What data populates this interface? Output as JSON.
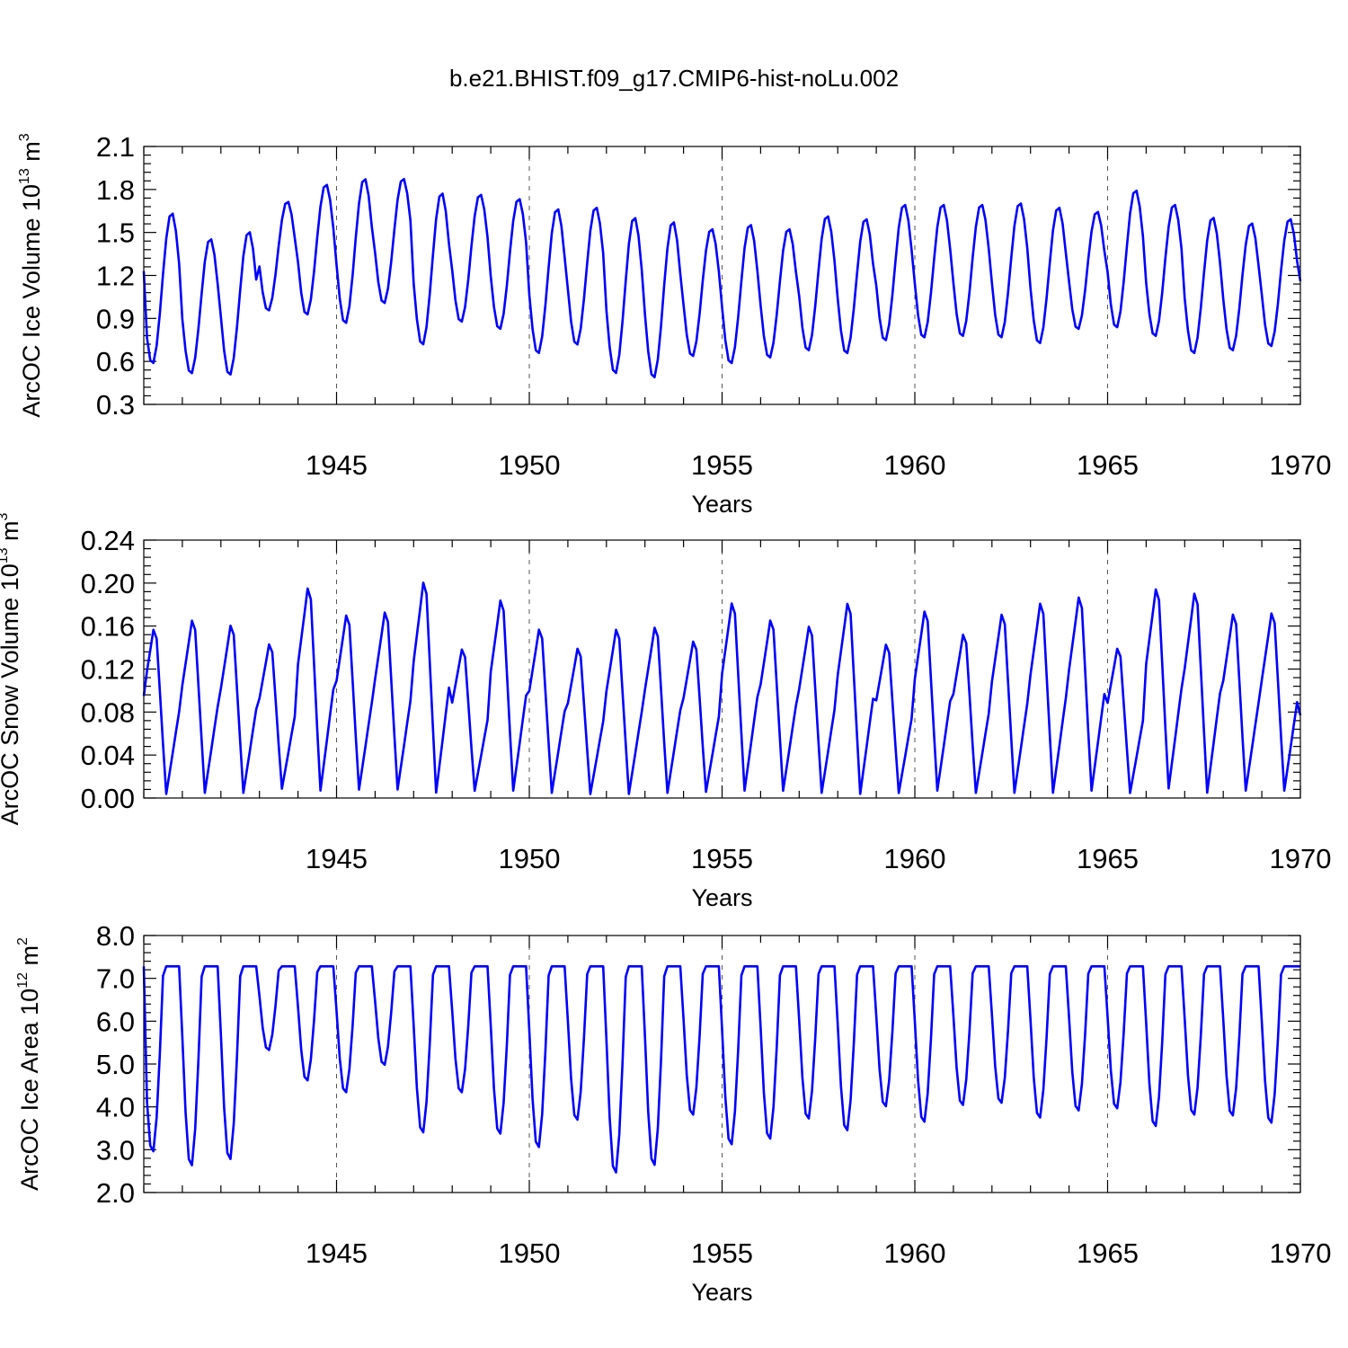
{
  "title": "b.e21.BHIST.f09_g17.CMIP6-hist-noLu.002",
  "colors": {
    "series": "#0000ff",
    "frame": "#000000"
  },
  "chart_data": [
    {
      "type": "line",
      "title": "b.e21.BHIST.f09_g17.CMIP6-hist-noLu.002",
      "xlabel": "Years",
      "ylabel": {
        "text": "ArcOC Ice Volume 10",
        "sup": "13",
        "unit": " m",
        "unit_sup": "3"
      },
      "xlim": [
        1940.0,
        1970.0
      ],
      "ylim": [
        0.3,
        2.1
      ],
      "xticks": [
        "1945",
        "1950",
        "1955",
        "1960",
        "1965",
        "1970"
      ],
      "yticks": [
        "0.3",
        "0.6",
        "0.9",
        "1.2",
        "1.5",
        "1.8",
        "2.1"
      ],
      "grid": "vertical dashed at labeled years",
      "annual_max": [
        1.64,
        1.46,
        1.51,
        1.72,
        1.84,
        1.88,
        1.88,
        1.78,
        1.77,
        1.74,
        1.67,
        1.68,
        1.61,
        1.58,
        1.53,
        1.56,
        1.53,
        1.62,
        1.6,
        1.7,
        1.7,
        1.7,
        1.71,
        1.68,
        1.65,
        1.8,
        1.7,
        1.61,
        1.57,
        1.6
      ],
      "annual_min": [
        0.58,
        0.51,
        0.5,
        0.95,
        0.92,
        0.86,
        1.0,
        0.71,
        0.87,
        0.82,
        0.65,
        0.71,
        0.51,
        0.48,
        0.63,
        0.58,
        0.62,
        0.67,
        0.65,
        0.74,
        0.76,
        0.77,
        0.76,
        0.72,
        0.82,
        0.83,
        0.77,
        0.65,
        0.67,
        0.7
      ],
      "start_value": 1.23,
      "end_value": 1.16
    },
    {
      "type": "line",
      "xlabel": "Years",
      "ylabel": {
        "text": "ArcOC Snow Volume 10",
        "sup": "13",
        "unit": " m",
        "unit_sup": "3"
      },
      "xlim": [
        1940.0,
        1970.0
      ],
      "ylim": [
        0.0,
        0.24
      ],
      "xticks": [
        "1945",
        "1950",
        "1955",
        "1960",
        "1965",
        "1970"
      ],
      "yticks": [
        "0.00",
        "0.04",
        "0.08",
        "0.12",
        "0.16",
        "0.20",
        "0.24"
      ],
      "grid": "vertical dashed at labeled years",
      "annual_max": [
        0.168,
        0.177,
        0.172,
        0.153,
        0.209,
        0.182,
        0.185,
        0.215,
        0.148,
        0.197,
        0.168,
        0.149,
        0.168,
        0.17,
        0.156,
        0.194,
        0.177,
        0.171,
        0.194,
        0.153,
        0.186,
        0.163,
        0.183,
        0.194,
        0.2,
        0.149,
        0.208,
        0.204,
        0.183,
        0.184
      ],
      "annual_min": [
        0.003,
        0.004,
        0.004,
        0.008,
        0.006,
        0.007,
        0.007,
        0.004,
        0.006,
        0.006,
        0.004,
        0.003,
        0.003,
        0.004,
        0.005,
        0.006,
        0.006,
        0.004,
        0.003,
        0.004,
        0.006,
        0.004,
        0.004,
        0.004,
        0.006,
        0.004,
        0.008,
        0.004,
        0.006,
        0.006
      ],
      "start_value": 0.095,
      "end_value": 0.077
    },
    {
      "type": "line",
      "xlabel": "Years",
      "ylabel": {
        "text": "ArcOC Ice Area 10",
        "sup": "12",
        "unit": " m",
        "unit_sup": "2"
      },
      "xlim": [
        1940.0,
        1970.0
      ],
      "ylim": [
        2.0,
        8.0
      ],
      "xticks": [
        "1945",
        "1950",
        "1955",
        "1960",
        "1965",
        "1970"
      ],
      "yticks": [
        "2.0",
        "3.0",
        "4.0",
        "5.0",
        "6.0",
        "7.0",
        "8.0"
      ],
      "grid": "vertical dashed at labeled years",
      "annual_max": [
        7.28,
        7.28,
        7.28,
        7.28,
        7.28,
        7.28,
        7.28,
        7.28,
        7.28,
        7.28,
        7.28,
        7.28,
        7.28,
        7.28,
        7.28,
        7.28,
        7.28,
        7.28,
        7.28,
        7.28,
        7.28,
        7.28,
        7.28,
        7.28,
        7.28,
        7.28,
        7.28,
        7.28,
        7.28,
        7.28
      ],
      "annual_min": [
        2.9,
        2.57,
        2.72,
        5.3,
        4.58,
        4.3,
        4.95,
        3.35,
        4.3,
        3.32,
        3.0,
        3.65,
        2.4,
        2.58,
        3.77,
        3.07,
        3.2,
        3.68,
        3.4,
        3.97,
        3.6,
        4.0,
        4.05,
        3.7,
        3.87,
        3.92,
        3.5,
        3.77,
        3.75,
        3.58
      ],
      "start_value": 7.28,
      "end_value": 7.28
    }
  ]
}
